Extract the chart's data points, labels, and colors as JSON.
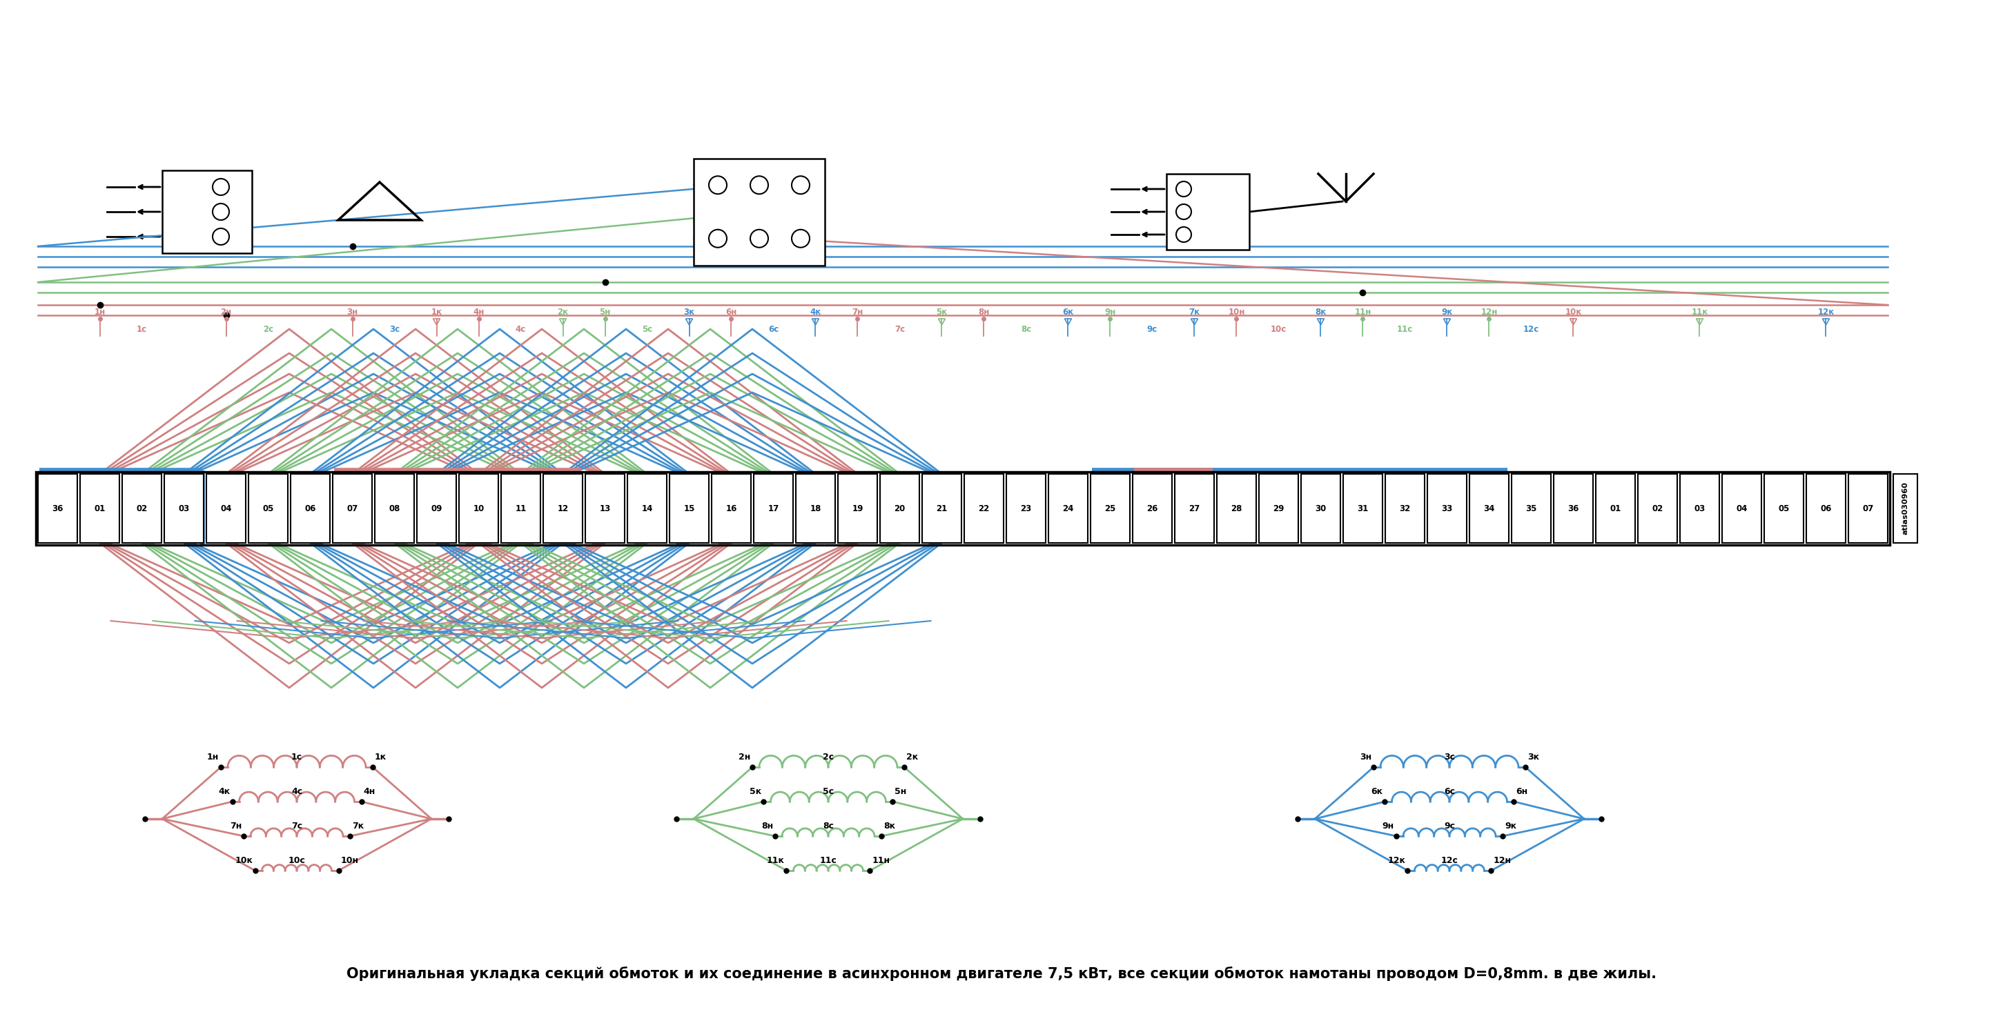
{
  "bottom_text": "Оригинальная укладка секций обмоток и их соединение в асинхронном двигателе 7,5 кВт, все секции обмоток намотаны проводом D=0,8mm. в две жилы.",
  "watermark": "atlas030960",
  "colors": {
    "red": "#D08080",
    "green": "#80C080",
    "blue": "#4090D0",
    "black": "#000000",
    "white": "#FFFFFF"
  },
  "slot_labels": [
    "36",
    "01",
    "02",
    "03",
    "04",
    "05",
    "06",
    "07",
    "08",
    "09",
    "10",
    "11",
    "12",
    "13",
    "14",
    "15",
    "16",
    "17",
    "18",
    "19",
    "20",
    "21",
    "22",
    "23",
    "24",
    "25",
    "26",
    "27",
    "28",
    "29",
    "30",
    "31",
    "32",
    "33",
    "34",
    "35",
    "36",
    "01",
    "02",
    "03",
    "04",
    "05",
    "06",
    "07"
  ]
}
